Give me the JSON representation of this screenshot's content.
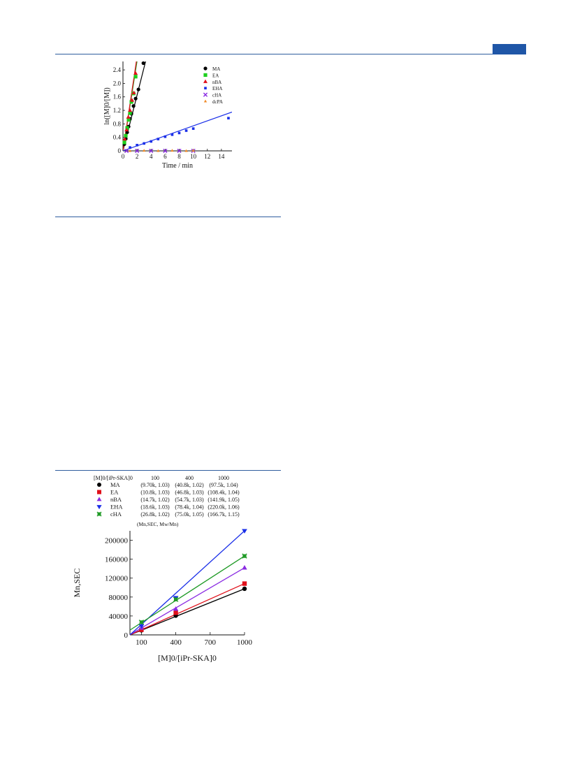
{
  "colors": {
    "header_rule": "#2f5d9e",
    "header_tab": "#1f56a7",
    "series": {
      "MA": "#000000",
      "EA": "#e0101a",
      "nBA": "#8a2be2",
      "EHA": "#1a2fe8",
      "cHA": "#1e9a25",
      "dcPA": "#f08a28"
    }
  },
  "chart_data": [
    {
      "type": "scatter",
      "title": "",
      "xlabel": "Time / min",
      "ylabel": "ln([M]0/[M])",
      "xlim": [
        0,
        15.5
      ],
      "ylim": [
        0,
        2.65
      ],
      "x_ticks": [
        "0",
        "2",
        "4",
        "6",
        "8",
        "10",
        "12",
        "14"
      ],
      "y_ticks": [
        "0",
        "0.4",
        "0.8",
        "1.2",
        "1.6",
        "2.0",
        "2.4"
      ],
      "legend_position": "top-right",
      "legend": [
        "MA",
        "EA",
        "nBA",
        "EHA",
        "cHA",
        "dcPA"
      ],
      "series": [
        {
          "name": "MA",
          "marker": "circle",
          "color": "#000000",
          "points": [
            [
              0.2,
              0.2
            ],
            [
              0.4,
              0.36
            ],
            [
              0.6,
              0.55
            ],
            [
              0.8,
              0.72
            ],
            [
              1.0,
              0.95
            ],
            [
              1.2,
              1.1
            ],
            [
              1.5,
              1.33
            ],
            [
              1.8,
              1.55
            ],
            [
              2.2,
              1.82
            ],
            [
              2.9,
              2.6
            ]
          ],
          "fit": [
            [
              0,
              0
            ],
            [
              3.3,
              2.72
            ]
          ]
        },
        {
          "name": "EA",
          "marker": "square",
          "color": "#1ecf1e",
          "points": [
            [
              0.2,
              0.25
            ],
            [
              0.4,
              0.45
            ],
            [
              0.6,
              0.68
            ],
            [
              0.8,
              0.92
            ],
            [
              1.0,
              1.12
            ],
            [
              1.2,
              1.45
            ],
            [
              1.5,
              1.7
            ],
            [
              1.8,
              2.2
            ]
          ],
          "fit": [
            [
              0,
              0
            ],
            [
              2.05,
              2.72
            ]
          ]
        },
        {
          "name": "nBA",
          "marker": "triangle-up",
          "color": "#e0101a",
          "points": [
            [
              0.25,
              0.35
            ],
            [
              0.5,
              0.62
            ],
            [
              0.75,
              1.0
            ],
            [
              1.0,
              1.2
            ],
            [
              1.3,
              1.5
            ],
            [
              1.55,
              1.72
            ],
            [
              1.8,
              2.3
            ]
          ],
          "fit": [
            [
              0,
              0
            ],
            [
              1.95,
              2.72
            ]
          ]
        },
        {
          "name": "EHA",
          "marker": "square-small",
          "color": "#1a2fe8",
          "points": [
            [
              1.0,
              0.1
            ],
            [
              2.0,
              0.17
            ],
            [
              3.0,
              0.22
            ],
            [
              4.0,
              0.28
            ],
            [
              5.0,
              0.35
            ],
            [
              6.0,
              0.42
            ],
            [
              7.0,
              0.48
            ],
            [
              8.0,
              0.53
            ],
            [
              9.0,
              0.6
            ],
            [
              10.0,
              0.66
            ],
            [
              15.0,
              0.97
            ]
          ],
          "fit": [
            [
              0,
              0
            ],
            [
              15.5,
              1.15
            ]
          ]
        },
        {
          "name": "cHA",
          "marker": "x",
          "color": "#8a2be2",
          "points": [
            [
              0.5,
              0.0
            ],
            [
              2.0,
              0.0
            ],
            [
              4.0,
              0.0
            ],
            [
              6.0,
              0.0
            ],
            [
              8.0,
              0.0
            ],
            [
              10.0,
              0.0
            ]
          ],
          "fit": null
        },
        {
          "name": "dcPA",
          "marker": "triangle-small",
          "color": "#f08a28",
          "points": [
            [
              1.0,
              0.0
            ],
            [
              3.0,
              0.01
            ],
            [
              5.0,
              0.0
            ],
            [
              7.0,
              0.01
            ],
            [
              9.0,
              0.0
            ],
            [
              10.0,
              0.01
            ]
          ],
          "fit": null
        }
      ]
    },
    {
      "type": "scatter",
      "title": "",
      "xlabel": "[M]0/[iPr-SKA]0",
      "ylabel": "Mn,SEC",
      "xlim": [
        0,
        1000
      ],
      "ylim": [
        0,
        220000
      ],
      "x_ticks": [
        "100",
        "400",
        "700",
        "1000"
      ],
      "y_ticks": [
        "0",
        "40000",
        "80000",
        "120000",
        "160000",
        "200000"
      ],
      "legend_position": "top",
      "table_header": {
        "col0": "[M]0/[iPr-SKA]0",
        "cols": [
          "100",
          "400",
          "1000"
        ],
        "note": "(Mn,SEC, Mw/Mn)"
      },
      "series": [
        {
          "name": "MA",
          "marker": "circle",
          "color": "#000000",
          "x": [
            100,
            400,
            1000
          ],
          "values": [
            9700,
            40800,
            97500
          ],
          "labels": [
            "(9.70k, 1.03)",
            "(40.8k, 1.02)",
            "(97.5k, 1.04)"
          ]
        },
        {
          "name": "EA",
          "marker": "square",
          "color": "#e0101a",
          "x": [
            100,
            400,
            1000
          ],
          "values": [
            10800,
            46800,
            108400
          ],
          "labels": [
            "(10.8k, 1.03)",
            "(46.8k, 1.03)",
            "(108.4k, 1.04)"
          ]
        },
        {
          "name": "nBA",
          "marker": "triangle-up",
          "color": "#8a2be2",
          "x": [
            100,
            400,
            1000
          ],
          "values": [
            14700,
            54700,
            141900
          ],
          "labels": [
            "(14.7k, 1.02)",
            "(54.7k, 1.03)",
            "(141.9k, 1.05)"
          ]
        },
        {
          "name": "EHA",
          "marker": "triangle-down",
          "color": "#1a2fe8",
          "x": [
            100,
            400,
            1000
          ],
          "values": [
            18600,
            78400,
            220000
          ],
          "labels": [
            "(18.6k, 1.03)",
            "(78.4k, 1.04)",
            "(220.0k, 1.06)"
          ]
        },
        {
          "name": "cHA",
          "marker": "x-square",
          "color": "#1e9a25",
          "x": [
            100,
            400,
            1000
          ],
          "values": [
            26800,
            75000,
            166700
          ],
          "labels": [
            "(26.8k, 1.02)",
            "(75.0k, 1.05)",
            "(166.7k, 1.15)"
          ]
        }
      ]
    }
  ]
}
